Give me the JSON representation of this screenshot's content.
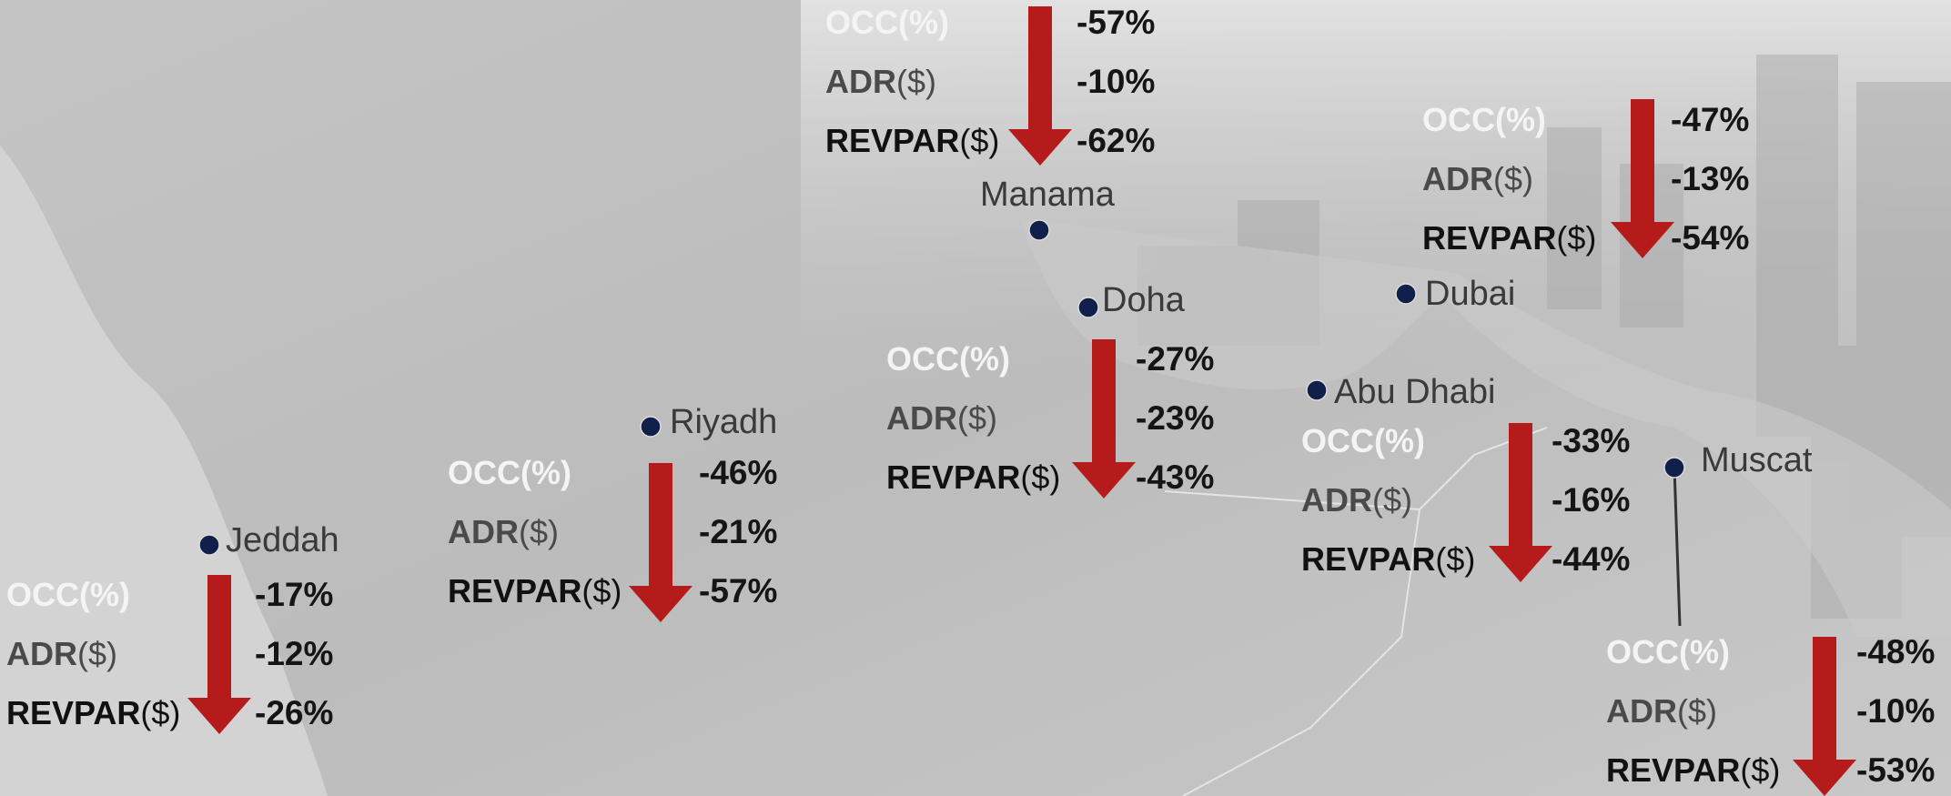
{
  "metrics": [
    {
      "name": "OCC",
      "unit": "(%)"
    },
    {
      "name": "ADR",
      "unit": "($)"
    },
    {
      "name": "REVPAR",
      "unit": "($)"
    }
  ],
  "cities": [
    {
      "name": "Manama",
      "values": [
        -57,
        -10,
        -62
      ],
      "value_labels": [
        "-57%",
        "-10%",
        "-62%"
      ]
    },
    {
      "name": "Dubai",
      "values": [
        -47,
        -13,
        -54
      ],
      "value_labels": [
        "-47%",
        "-13%",
        "-54%"
      ]
    },
    {
      "name": "Doha",
      "values": [
        -27,
        -23,
        -43
      ],
      "value_labels": [
        "-27%",
        "-23%",
        "-43%"
      ]
    },
    {
      "name": "Abu Dhabi",
      "values": [
        -33,
        -16,
        -44
      ],
      "value_labels": [
        "-33%",
        "-16%",
        "-44%"
      ]
    },
    {
      "name": "Riyadh",
      "values": [
        -46,
        -21,
        -57
      ],
      "value_labels": [
        "-46%",
        "-21%",
        "-57%"
      ]
    },
    {
      "name": "Muscat",
      "values": [
        -48,
        -10,
        -53
      ],
      "value_labels": [
        "-48%",
        "-10%",
        "-53%"
      ]
    },
    {
      "name": "Jeddah",
      "values": [
        -17,
        -12,
        -26
      ],
      "value_labels": [
        "-17%",
        "-12%",
        "-26%"
      ]
    }
  ]
}
